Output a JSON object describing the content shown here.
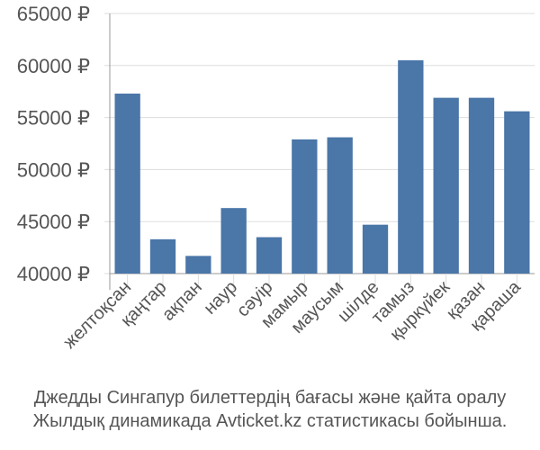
{
  "chart_data": {
    "type": "bar",
    "categories": [
      "желтоқсан",
      "қаңтар",
      "ақпан",
      "наур",
      "сәуір",
      "мамыр",
      "маусым",
      "шілде",
      "тамыз",
      "қыркүйек",
      "қазан",
      "қараша"
    ],
    "values": [
      57300,
      43300,
      41700,
      46300,
      43500,
      52900,
      53100,
      44700,
      60500,
      56900,
      56900,
      55600
    ],
    "y_ticks": [
      "40000 ₽",
      "45000 ₽",
      "50000 ₽",
      "55000 ₽",
      "60000 ₽",
      "65000 ₽"
    ],
    "y_tick_values": [
      40000,
      45000,
      50000,
      55000,
      60000,
      65000
    ],
    "ylim": [
      40000,
      65000
    ],
    "title": "",
    "xlabel": "",
    "ylabel": "",
    "grid": "horizontal",
    "bar_color": "#4a76a8",
    "grid_color": "#dddddd",
    "axis_color": "#999999"
  },
  "caption": {
    "line1": "Джедды Сингапур билеттердің бағасы және қайта оралу",
    "line2": "Жылдық динамикада Avticket.kz статистикасы бойынша."
  }
}
